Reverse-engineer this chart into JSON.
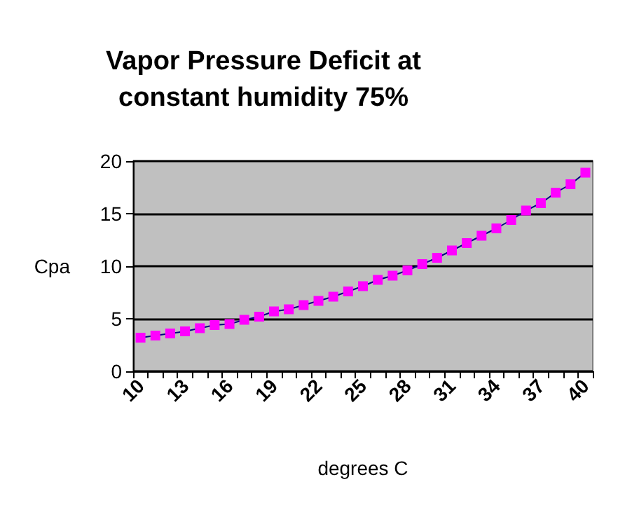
{
  "chart_data": {
    "type": "line",
    "title": "Vapor Pressure Deficit at\nconstant humidity 75%",
    "xlabel": "degrees C",
    "ylabel": "Cpa",
    "categories": [
      "10",
      null,
      null,
      "13",
      null,
      null,
      "16",
      null,
      null,
      "19",
      null,
      null,
      "22",
      null,
      null,
      "25",
      null,
      null,
      "28",
      null,
      null,
      "31",
      null,
      null,
      "34",
      null,
      null,
      "37",
      null,
      null,
      "40"
    ],
    "series": [
      {
        "color": "#ff00ff",
        "values": [
          3.2,
          3.4,
          3.6,
          3.8,
          4.1,
          4.4,
          4.5,
          4.9,
          5.2,
          5.7,
          5.9,
          6.3,
          6.7,
          7.1,
          7.6,
          8.1,
          8.7,
          9.1,
          9.6,
          10.2,
          10.8,
          11.5,
          12.2,
          12.9,
          13.6,
          14.4,
          15.3,
          16.0,
          17.0,
          17.8,
          18.9
        ]
      }
    ],
    "ylim": [
      0,
      20
    ],
    "yticks": [
      0,
      5,
      10,
      15,
      20
    ],
    "grid": "y",
    "marker": "square",
    "line_style": "solid"
  }
}
